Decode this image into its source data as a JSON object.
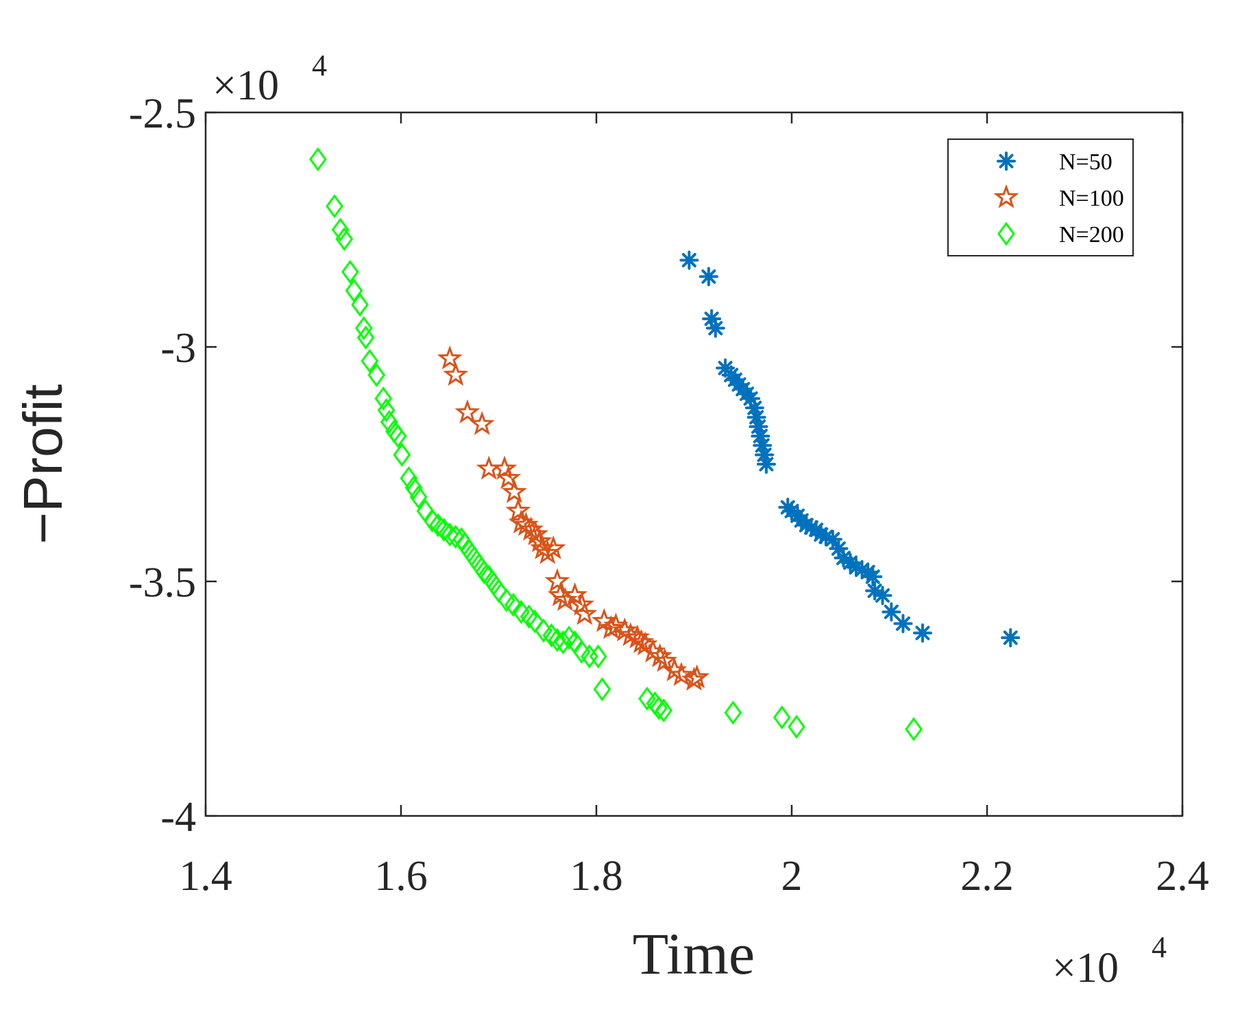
{
  "chart_data": {
    "type": "scatter",
    "title": "",
    "xlabel": "Time",
    "ylabel": "−Profit",
    "xlim": [
      14000,
      24000
    ],
    "ylim": [
      -40000,
      -25000
    ],
    "x_ticks": [
      14000,
      16000,
      18000,
      20000,
      22000,
      24000
    ],
    "x_tick_labels": [
      "1.4",
      "1.6",
      "1.8",
      "2",
      "2.2",
      "2.4"
    ],
    "y_ticks": [
      -40000,
      -35000,
      -30000,
      -25000
    ],
    "y_tick_labels": [
      "-4",
      "-3.5",
      "-3",
      "-2.5"
    ],
    "x_exponent": {
      "prefix": "×10",
      "power": "4"
    },
    "y_exponent": {
      "prefix": "×10",
      "power": "4"
    },
    "grid": false,
    "legend_position": "top-right",
    "series": [
      {
        "name": "N=50",
        "marker": "asterisk",
        "color": "#0072BD",
        "points": [
          [
            18950,
            -28150
          ],
          [
            19150,
            -28500
          ],
          [
            19180,
            -29400
          ],
          [
            19220,
            -29600
          ],
          [
            19320,
            -30450
          ],
          [
            19380,
            -30600
          ],
          [
            19420,
            -30700
          ],
          [
            19460,
            -30800
          ],
          [
            19500,
            -30900
          ],
          [
            19540,
            -31000
          ],
          [
            19580,
            -31100
          ],
          [
            19620,
            -31300
          ],
          [
            19640,
            -31500
          ],
          [
            19660,
            -31700
          ],
          [
            19680,
            -31900
          ],
          [
            19700,
            -32100
          ],
          [
            19720,
            -32300
          ],
          [
            19740,
            -32500
          ],
          [
            19960,
            -33420
          ],
          [
            20000,
            -33500
          ],
          [
            20060,
            -33600
          ],
          [
            20100,
            -33700
          ],
          [
            20150,
            -33800
          ],
          [
            20200,
            -33850
          ],
          [
            20250,
            -33900
          ],
          [
            20300,
            -34000
          ],
          [
            20350,
            -34050
          ],
          [
            20420,
            -34100
          ],
          [
            20480,
            -34300
          ],
          [
            20530,
            -34500
          ],
          [
            20600,
            -34600
          ],
          [
            20660,
            -34700
          ],
          [
            20720,
            -34750
          ],
          [
            20780,
            -34800
          ],
          [
            20830,
            -34900
          ],
          [
            20850,
            -35200
          ],
          [
            20930,
            -35300
          ],
          [
            21020,
            -35650
          ],
          [
            21140,
            -35900
          ],
          [
            21340,
            -36100
          ],
          [
            22240,
            -36200
          ]
        ]
      },
      {
        "name": "N=100",
        "marker": "pentagram",
        "color": "#D95319",
        "points": [
          [
            16500,
            -30250
          ],
          [
            16560,
            -30600
          ],
          [
            16680,
            -31400
          ],
          [
            16830,
            -31650
          ],
          [
            16900,
            -32600
          ],
          [
            17060,
            -32600
          ],
          [
            17100,
            -32800
          ],
          [
            17160,
            -33100
          ],
          [
            17200,
            -33500
          ],
          [
            17230,
            -33750
          ],
          [
            17280,
            -33800
          ],
          [
            17330,
            -33900
          ],
          [
            17380,
            -34000
          ],
          [
            17420,
            -34150
          ],
          [
            17450,
            -34300
          ],
          [
            17500,
            -34400
          ],
          [
            17560,
            -34300
          ],
          [
            17600,
            -35000
          ],
          [
            17630,
            -35300
          ],
          [
            17680,
            -35400
          ],
          [
            17780,
            -35300
          ],
          [
            17850,
            -35500
          ],
          [
            17880,
            -35700
          ],
          [
            18080,
            -35850
          ],
          [
            18150,
            -36000
          ],
          [
            18200,
            -35950
          ],
          [
            18290,
            -36050
          ],
          [
            18350,
            -36150
          ],
          [
            18420,
            -36200
          ],
          [
            18460,
            -36300
          ],
          [
            18500,
            -36350
          ],
          [
            18580,
            -36500
          ],
          [
            18650,
            -36600
          ],
          [
            18700,
            -36700
          ],
          [
            18800,
            -36900
          ],
          [
            18870,
            -37000
          ],
          [
            19000,
            -37100
          ],
          [
            19030,
            -37050
          ]
        ]
      },
      {
        "name": "N=200",
        "marker": "diamond",
        "color": "#00FF00",
        "points": [
          [
            15150,
            -26000
          ],
          [
            15320,
            -27000
          ],
          [
            15380,
            -27500
          ],
          [
            15420,
            -27700
          ],
          [
            15480,
            -28400
          ],
          [
            15520,
            -28800
          ],
          [
            15580,
            -29100
          ],
          [
            15620,
            -29600
          ],
          [
            15640,
            -29800
          ],
          [
            15680,
            -30300
          ],
          [
            15750,
            -30600
          ],
          [
            15820,
            -31100
          ],
          [
            15850,
            -31350
          ],
          [
            15880,
            -31600
          ],
          [
            15930,
            -31800
          ],
          [
            15970,
            -31900
          ],
          [
            16010,
            -32300
          ],
          [
            16080,
            -32800
          ],
          [
            16130,
            -33000
          ],
          [
            16180,
            -33200
          ],
          [
            16250,
            -33500
          ],
          [
            16320,
            -33700
          ],
          [
            16380,
            -33800
          ],
          [
            16440,
            -33900
          ],
          [
            16500,
            -34000
          ],
          [
            16560,
            -34050
          ],
          [
            16620,
            -34100
          ],
          [
            16650,
            -34200
          ],
          [
            16700,
            -34350
          ],
          [
            16750,
            -34500
          ],
          [
            16800,
            -34650
          ],
          [
            16850,
            -34800
          ],
          [
            16900,
            -34900
          ],
          [
            16950,
            -35050
          ],
          [
            17000,
            -35200
          ],
          [
            17080,
            -35400
          ],
          [
            17150,
            -35500
          ],
          [
            17230,
            -35650
          ],
          [
            17310,
            -35750
          ],
          [
            17370,
            -35850
          ],
          [
            17460,
            -36050
          ],
          [
            17540,
            -36150
          ],
          [
            17600,
            -36250
          ],
          [
            17660,
            -36300
          ],
          [
            17720,
            -36200
          ],
          [
            17780,
            -36300
          ],
          [
            17850,
            -36500
          ],
          [
            17930,
            -36600
          ],
          [
            18020,
            -36600
          ],
          [
            18060,
            -37300
          ],
          [
            18520,
            -37500
          ],
          [
            18600,
            -37600
          ],
          [
            18640,
            -37700
          ],
          [
            18690,
            -37750
          ],
          [
            19400,
            -37800
          ],
          [
            19900,
            -37900
          ],
          [
            20050,
            -38100
          ],
          [
            21250,
            -38150
          ]
        ]
      }
    ]
  }
}
